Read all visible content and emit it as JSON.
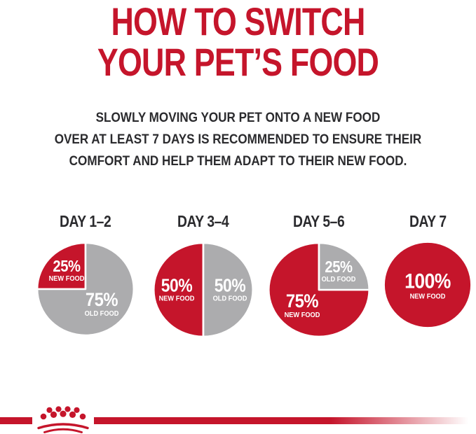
{
  "title": {
    "line1": "HOW TO SWITCH",
    "line2": "YOUR PET’S FOOD"
  },
  "subtitle": {
    "lines": [
      "SLOWLY MOVING YOUR PET ONTO A NEW FOOD",
      "OVER AT LEAST 7 DAYS IS RECOMMENDED TO ENSURE THEIR",
      "COMFORT AND HELP THEM ADAPT TO THEIR NEW FOOD."
    ]
  },
  "colors": {
    "brand_red": "#C5152B",
    "pie_gray": "#ACACAE",
    "text_dark": "#2B2B2E",
    "pie_label_white": "#FFFFFF"
  },
  "chart_data": {
    "type": "pie",
    "title": "HOW TO SWITCH YOUR PET’S FOOD",
    "unit": "%",
    "legend_position": "inside-slices",
    "charts": [
      {
        "label": "DAY 1–2",
        "slices": [
          {
            "name": "NEW FOOD",
            "value": 25,
            "color": "#C5152B"
          },
          {
            "name": "OLD FOOD",
            "value": 75,
            "color": "#ACACAE"
          }
        ]
      },
      {
        "label": "DAY 3–4",
        "slices": [
          {
            "name": "NEW FOOD",
            "value": 50,
            "color": "#C5152B"
          },
          {
            "name": "OLD FOOD",
            "value": 50,
            "color": "#ACACAE"
          }
        ]
      },
      {
        "label": "DAY 5–6",
        "slices": [
          {
            "name": "NEW FOOD",
            "value": 75,
            "color": "#C5152B"
          },
          {
            "name": "OLD FOOD",
            "value": 25,
            "color": "#ACACAE"
          }
        ]
      },
      {
        "label": "DAY 7",
        "slices": [
          {
            "name": "NEW FOOD",
            "value": 100,
            "color": "#C5152B"
          }
        ]
      }
    ]
  },
  "footer": {
    "logo": "royal-canin-crown",
    "rule_color": "#C5152B"
  }
}
